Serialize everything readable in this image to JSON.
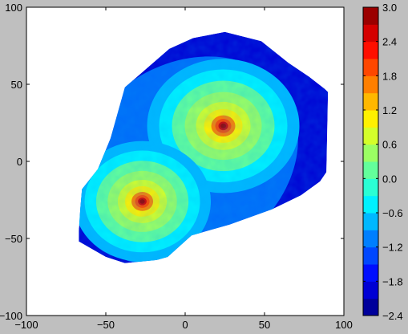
{
  "chart_data": [
    {
      "type": "heatmap",
      "plot_kind": "filled contour (log-density of two merging galaxies)",
      "title": "",
      "xlabel": "",
      "ylabel": "",
      "xlim": [
        -100,
        100
      ],
      "ylim": [
        -100,
        100
      ],
      "xticks": [
        -100,
        -50,
        0,
        50,
        100
      ],
      "yticks": [
        -100,
        -50,
        0,
        50,
        100
      ],
      "xtick_labels": [
        "−100",
        "−50",
        "0",
        "50",
        "100"
      ],
      "ytick_labels": [
        "−100",
        "−50",
        "0",
        "50",
        "100"
      ],
      "grid": false,
      "background_color": "#ffffff",
      "outline": [
        [
          -67,
          -52
        ],
        [
          -67,
          -45
        ],
        [
          -66,
          -30
        ],
        [
          -65,
          -18
        ],
        [
          -55,
          -5
        ],
        [
          -47,
          15
        ],
        [
          -38,
          48
        ],
        [
          -10,
          73
        ],
        [
          5,
          80
        ],
        [
          25,
          84
        ],
        [
          48,
          78
        ],
        [
          65,
          64
        ],
        [
          78,
          55
        ],
        [
          88,
          47
        ],
        [
          90,
          45
        ],
        [
          89,
          -7
        ],
        [
          85,
          -13
        ],
        [
          73,
          -22
        ],
        [
          55,
          -31
        ],
        [
          28,
          -41
        ],
        [
          4,
          -48
        ],
        [
          -11,
          -62
        ],
        [
          -18,
          -64
        ],
        [
          -38,
          -66
        ],
        [
          -50,
          -62
        ]
      ],
      "peaks": [
        {
          "x": 24,
          "y": 23,
          "value": 3.0
        },
        {
          "x": -27,
          "y": -26,
          "value": 3.0
        }
      ],
      "value_range": [
        -2.4,
        3.0
      ]
    },
    {
      "type": "colorbar",
      "range": [
        -2.4,
        3.0
      ],
      "ticks": [
        3.0,
        2.4,
        1.8,
        1.2,
        0.6,
        0.0,
        -0.6,
        -1.2,
        -1.8,
        -2.4
      ],
      "tick_labels": [
        "3.0",
        "2.4",
        "1.8",
        "1.2",
        "0.6",
        "0.0",
        "−0.6",
        "−1.2",
        "−1.8",
        "−2.4"
      ],
      "colormap": "jet",
      "colormap_stops": [
        "#00007f",
        "#0000ff",
        "#007fff",
        "#00ffff",
        "#7fff7f",
        "#ffff00",
        "#ff7f00",
        "#ff0000",
        "#7f0000"
      ],
      "levels": 18
    }
  ]
}
